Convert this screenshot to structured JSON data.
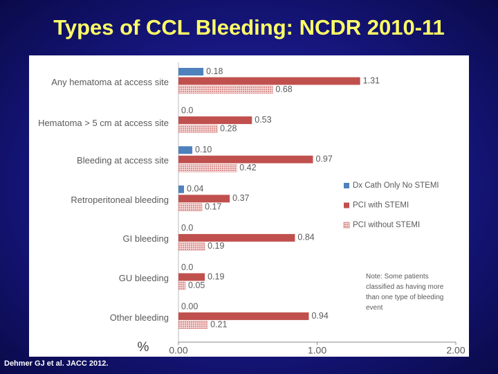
{
  "chart_data": {
    "type": "hbar",
    "title": "Types of CCL Bleeding: NCDR 2010-11",
    "categories": [
      "Any hematoma at access site",
      "Hematoma > 5 cm at access site",
      "Bleeding at access site",
      "Retroperitoneal bleeding",
      "GI bleeding",
      "GU bleeding",
      "Other bleeding"
    ],
    "series": [
      {
        "name": "Dx Cath Only No STEMI",
        "color": "#4f81bd",
        "values": [
          0.18,
          0.0,
          0.1,
          0.04,
          0.0,
          0.0,
          0.0
        ],
        "value_labels": [
          "0.18",
          "0.0",
          "0.10",
          "0.04",
          "0.0",
          "0.0",
          "0.00"
        ]
      },
      {
        "name": "PCI with STEMI",
        "color": "#c0504d",
        "values": [
          1.31,
          0.53,
          0.97,
          0.37,
          0.84,
          0.19,
          0.94
        ],
        "value_labels": [
          "1.31",
          "0.53",
          "0.97",
          "0.37",
          "0.84",
          "0.19",
          "0.94"
        ]
      },
      {
        "name": "PCI without STEMI",
        "color": "#d9908e",
        "pattern": true,
        "values": [
          0.68,
          0.28,
          0.42,
          0.17,
          0.19,
          0.05,
          0.21
        ],
        "value_labels": [
          "0.68",
          "0.28",
          "0.42",
          "0.17",
          "0.19",
          "0.05",
          "0.21"
        ]
      }
    ],
    "xlabel": "%",
    "xlim": [
      0,
      2
    ],
    "xticks": [
      {
        "value": 0,
        "label": "0.00"
      },
      {
        "value": 1,
        "label": "1.00"
      },
      {
        "value": 2,
        "label": "2.00"
      }
    ],
    "note": "Note:  Some patients classified as having more than one type of bleeding event"
  },
  "footnote": "Dehmer GJ et al.  JACC 2012."
}
